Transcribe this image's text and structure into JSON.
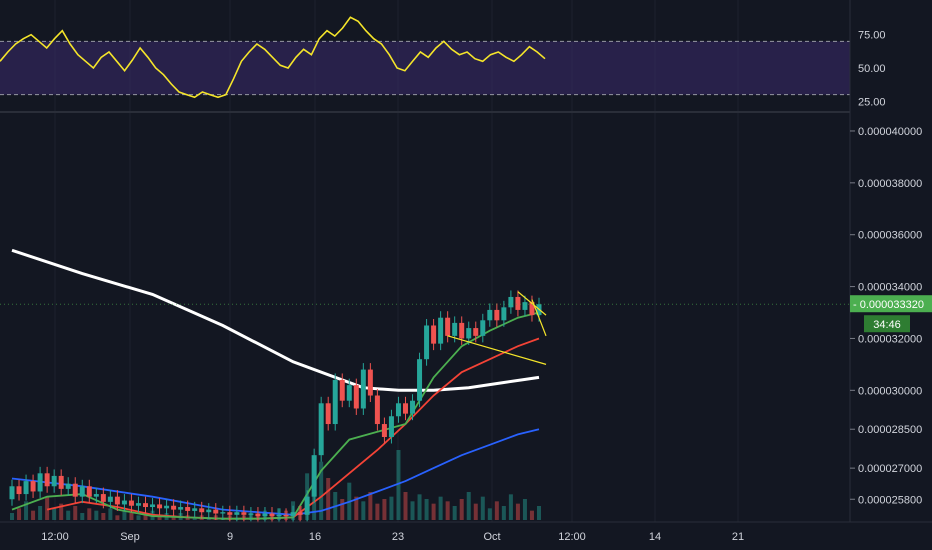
{
  "chart_data": [
    {
      "type": "line",
      "pane": "rsi",
      "ylim": [
        20,
        95
      ],
      "ticks": [
        "75.00",
        "50.00",
        "25.00"
      ],
      "bands": {
        "upper": 70,
        "lower": 30
      },
      "band_fill": "#3b2a6b",
      "series": [
        {
          "color": "#f5e52a",
          "x": [
            0,
            1,
            2,
            3,
            4,
            5,
            6,
            7,
            8,
            9,
            10,
            11,
            12,
            13,
            14,
            15,
            16,
            17,
            18,
            19,
            20,
            21,
            22,
            23,
            24,
            25,
            26,
            27,
            28,
            29,
            30,
            31,
            32,
            33,
            34,
            35,
            36,
            37,
            38,
            39,
            40,
            41,
            42,
            43,
            44,
            45,
            46,
            47,
            48,
            49,
            50,
            51,
            52,
            53,
            54,
            55,
            56,
            57,
            58,
            59,
            60,
            61,
            62,
            63,
            64,
            65,
            66,
            67,
            68,
            69,
            70
          ],
          "values": [
            55,
            62,
            68,
            72,
            75,
            70,
            65,
            72,
            78,
            68,
            60,
            55,
            50,
            58,
            62,
            55,
            48,
            56,
            65,
            58,
            50,
            45,
            38,
            32,
            30,
            28,
            32,
            30,
            28,
            30,
            42,
            55,
            62,
            68,
            64,
            58,
            52,
            50,
            58,
            64,
            60,
            72,
            78,
            74,
            80,
            88,
            85,
            78,
            72,
            68,
            60,
            50,
            48,
            55,
            62,
            58,
            65,
            70,
            64,
            60,
            62,
            57,
            55,
            60,
            62,
            58,
            55,
            60,
            66,
            62,
            57
          ]
        }
      ]
    },
    {
      "type": "candlestick",
      "pane": "price",
      "ylim": [
        2.5e-05,
        4.05e-05
      ],
      "price_ticks": [
        "0.000040000",
        "0.000038000",
        "0.000036000",
        "0.000034000",
        "0.000032000",
        "0.000030000",
        "0.000028500",
        "0.000027000",
        "0.000025800"
      ],
      "x_ticks": [
        "12:00",
        "Sep",
        "9",
        "16",
        "23",
        "Oct",
        "12:00",
        "14",
        "21"
      ],
      "last_price": "0.000033320",
      "countdown": "34:46",
      "colors": {
        "up": "#26a69a",
        "down": "#ef5350",
        "ma_white": "#ffffff",
        "ma_green": "#4caf50",
        "ma_red": "#f44336",
        "ma_blue": "#2962ff",
        "wedge": "#f5e52a",
        "badge": "#4caf50"
      },
      "candles": [
        {
          "x": 0,
          "o": 25800,
          "c": 26300
        },
        {
          "x": 1,
          "o": 26300,
          "c": 26000
        },
        {
          "x": 2,
          "o": 26000,
          "c": 26500
        },
        {
          "x": 3,
          "o": 26500,
          "c": 26100
        },
        {
          "x": 4,
          "o": 26100,
          "c": 26800
        },
        {
          "x": 5,
          "o": 26800,
          "c": 26300
        },
        {
          "x": 6,
          "o": 26300,
          "c": 26700
        },
        {
          "x": 7,
          "o": 26700,
          "c": 26200
        },
        {
          "x": 8,
          "o": 26200,
          "c": 26400
        },
        {
          "x": 9,
          "o": 26400,
          "c": 25900
        },
        {
          "x": 10,
          "o": 25900,
          "c": 26300
        },
        {
          "x": 11,
          "o": 26300,
          "c": 25900
        },
        {
          "x": 12,
          "o": 25900,
          "c": 26000
        },
        {
          "x": 13,
          "o": 26000,
          "c": 25700
        },
        {
          "x": 14,
          "o": 25700,
          "c": 25900
        },
        {
          "x": 15,
          "o": 25900,
          "c": 25600
        },
        {
          "x": 16,
          "o": 25600,
          "c": 25750
        },
        {
          "x": 17,
          "o": 25750,
          "c": 25550
        },
        {
          "x": 18,
          "o": 25550,
          "c": 25650
        },
        {
          "x": 19,
          "o": 25650,
          "c": 25500
        },
        {
          "x": 20,
          "o": 25500,
          "c": 25600
        },
        {
          "x": 21,
          "o": 25600,
          "c": 25450
        },
        {
          "x": 22,
          "o": 25450,
          "c": 25550
        },
        {
          "x": 23,
          "o": 25550,
          "c": 25400
        },
        {
          "x": 24,
          "o": 25400,
          "c": 25500
        },
        {
          "x": 25,
          "o": 25500,
          "c": 25350
        },
        {
          "x": 26,
          "o": 25350,
          "c": 25450
        },
        {
          "x": 27,
          "o": 25450,
          "c": 25300
        },
        {
          "x": 28,
          "o": 25300,
          "c": 25400
        },
        {
          "x": 29,
          "o": 25400,
          "c": 25250
        },
        {
          "x": 30,
          "o": 25250,
          "c": 25300
        },
        {
          "x": 31,
          "o": 25300,
          "c": 25200
        },
        {
          "x": 32,
          "o": 25200,
          "c": 25300
        },
        {
          "x": 33,
          "o": 25300,
          "c": 25200
        },
        {
          "x": 34,
          "o": 25200,
          "c": 25250
        },
        {
          "x": 35,
          "o": 25250,
          "c": 25150
        },
        {
          "x": 36,
          "o": 25150,
          "c": 25250
        },
        {
          "x": 37,
          "o": 25250,
          "c": 25150
        },
        {
          "x": 38,
          "o": 25150,
          "c": 25200
        },
        {
          "x": 39,
          "o": 25200,
          "c": 25150
        },
        {
          "x": 40,
          "o": 25150,
          "c": 25300
        },
        {
          "x": 41,
          "o": 25300,
          "c": 25200
        },
        {
          "x": 42,
          "o": 25200,
          "c": 25900
        },
        {
          "x": 43,
          "o": 25900,
          "c": 27500
        },
        {
          "x": 44,
          "o": 27500,
          "c": 29500
        },
        {
          "x": 45,
          "o": 29500,
          "c": 28700
        },
        {
          "x": 46,
          "o": 28700,
          "c": 30400
        },
        {
          "x": 47,
          "o": 30400,
          "c": 29600
        },
        {
          "x": 48,
          "o": 29600,
          "c": 30200
        },
        {
          "x": 49,
          "o": 30200,
          "c": 29300
        },
        {
          "x": 50,
          "o": 29300,
          "c": 30800
        },
        {
          "x": 51,
          "o": 30800,
          "c": 29800
        },
        {
          "x": 52,
          "o": 29800,
          "c": 28700
        },
        {
          "x": 53,
          "o": 28700,
          "c": 28200
        },
        {
          "x": 54,
          "o": 28200,
          "c": 29000
        },
        {
          "x": 55,
          "o": 29000,
          "c": 29500
        },
        {
          "x": 56,
          "o": 29500,
          "c": 29100
        },
        {
          "x": 57,
          "o": 29100,
          "c": 29600
        },
        {
          "x": 58,
          "o": 29600,
          "c": 31200
        },
        {
          "x": 59,
          "o": 31200,
          "c": 32500
        },
        {
          "x": 60,
          "o": 32500,
          "c": 31800
        },
        {
          "x": 61,
          "o": 31800,
          "c": 32800
        },
        {
          "x": 62,
          "o": 32800,
          "c": 32100
        },
        {
          "x": 63,
          "o": 32100,
          "c": 32600
        },
        {
          "x": 64,
          "o": 32600,
          "c": 32000
        },
        {
          "x": 65,
          "o": 32000,
          "c": 32400
        },
        {
          "x": 66,
          "o": 32400,
          "c": 32100
        },
        {
          "x": 67,
          "o": 32100,
          "c": 32700
        },
        {
          "x": 68,
          "o": 32700,
          "c": 33100
        },
        {
          "x": 69,
          "o": 33100,
          "c": 32700
        },
        {
          "x": 70,
          "o": 32700,
          "c": 33200
        },
        {
          "x": 71,
          "o": 33200,
          "c": 33600
        },
        {
          "x": 72,
          "o": 33600,
          "c": 33100
        },
        {
          "x": 73,
          "o": 33100,
          "c": 33400
        },
        {
          "x": 74,
          "o": 33400,
          "c": 32900
        },
        {
          "x": 75,
          "o": 32900,
          "c": 33320
        }
      ],
      "ma_series": [
        {
          "name_key": "ma_white",
          "x": [
            0,
            10,
            20,
            30,
            40,
            50,
            55,
            60,
            65,
            70,
            75
          ],
          "values": [
            35400,
            34500,
            33700,
            32500,
            31100,
            30100,
            30000,
            30000,
            30100,
            30300,
            30500
          ]
        },
        {
          "name_key": "ma_blue",
          "x": [
            0,
            10,
            20,
            30,
            40,
            44,
            48,
            52,
            56,
            60,
            64,
            68,
            72,
            75
          ],
          "values": [
            26600,
            26300,
            25900,
            25400,
            25200,
            25350,
            25700,
            26100,
            26500,
            27000,
            27500,
            27900,
            28300,
            28500
          ]
        },
        {
          "name_key": "ma_red",
          "x": [
            5,
            10,
            15,
            20,
            25,
            30,
            35,
            40,
            44,
            48,
            52,
            56,
            60,
            64,
            68,
            72,
            75
          ],
          "values": [
            25400,
            25700,
            25500,
            25200,
            25100,
            25050,
            25050,
            25100,
            25900,
            26800,
            27700,
            28700,
            29800,
            30700,
            31200,
            31700,
            32000
          ]
        },
        {
          "name_key": "ma_green",
          "x": [
            0,
            5,
            10,
            15,
            20,
            25,
            30,
            35,
            40,
            44,
            48,
            52,
            56,
            60,
            64,
            68,
            72,
            75
          ],
          "values": [
            25400,
            25900,
            26000,
            25400,
            25150,
            25100,
            25050,
            25050,
            25100,
            26900,
            28100,
            28400,
            28700,
            30500,
            31700,
            32300,
            32800,
            33000
          ]
        }
      ],
      "wedge_lines": [
        {
          "x": [
            62,
            76
          ],
          "values": [
            32100,
            31000
          ]
        },
        {
          "x": [
            72,
            76
          ],
          "values": [
            33800,
            32900
          ]
        },
        {
          "x": [
            74,
            76
          ],
          "values": [
            33500,
            32100
          ]
        }
      ],
      "volumes": [
        3,
        5,
        8,
        4,
        6,
        10,
        5,
        7,
        4,
        6,
        3,
        5,
        4,
        3,
        5,
        2,
        4,
        3,
        2,
        3,
        4,
        2,
        3,
        2,
        3,
        2,
        1,
        2,
        1,
        2,
        1,
        2,
        1,
        2,
        3,
        2,
        4,
        3,
        5,
        4,
        8,
        6,
        20,
        14,
        25,
        18,
        12,
        9,
        16,
        10,
        8,
        12,
        7,
        9,
        10,
        30,
        12,
        8,
        11,
        9,
        7,
        10,
        8,
        6,
        9,
        12,
        7,
        10,
        5,
        8,
        6,
        11,
        7,
        9,
        4,
        6
      ]
    }
  ]
}
